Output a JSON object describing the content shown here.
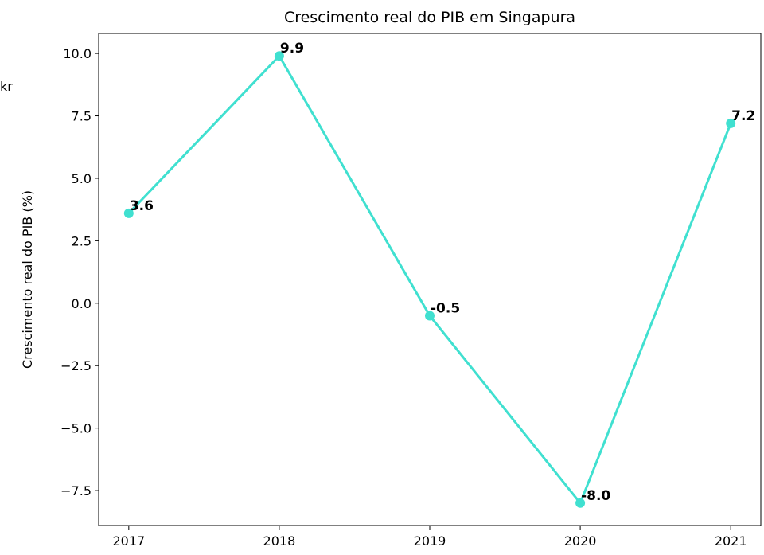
{
  "chart_data": {
    "type": "line",
    "title": "Crescimento real do PIB em Singapura",
    "ylabel": "Crescimento real do PIB (%)",
    "annotation": "kr",
    "x": [
      2017,
      2018,
      2019,
      2020,
      2021
    ],
    "series": [
      {
        "name": "Crescimento real do PIB",
        "color": "#40e0d0",
        "values": [
          3.6,
          9.9,
          -0.5,
          -8.0,
          7.2
        ],
        "value_labels": [
          "3.6",
          "9.9",
          "-0.5",
          "-8.0",
          "7.2"
        ]
      }
    ],
    "xlim": [
      2016.8,
      2021.2
    ],
    "xticks": [
      2017,
      2018,
      2019,
      2020,
      2021
    ],
    "ylim": [
      -8.9,
      10.8
    ],
    "yticks": [
      {
        "value": -7.5,
        "label": "−7.5"
      },
      {
        "value": -5,
        "label": "−5.0"
      },
      {
        "value": -2.5,
        "label": "−2.5"
      },
      {
        "value": 0,
        "label": "0.0"
      },
      {
        "value": 2.5,
        "label": "2.5"
      },
      {
        "value": 5,
        "label": "5.0"
      },
      {
        "value": 7.5,
        "label": "7.5"
      },
      {
        "value": 10,
        "label": "10.0"
      }
    ],
    "grid": false
  }
}
